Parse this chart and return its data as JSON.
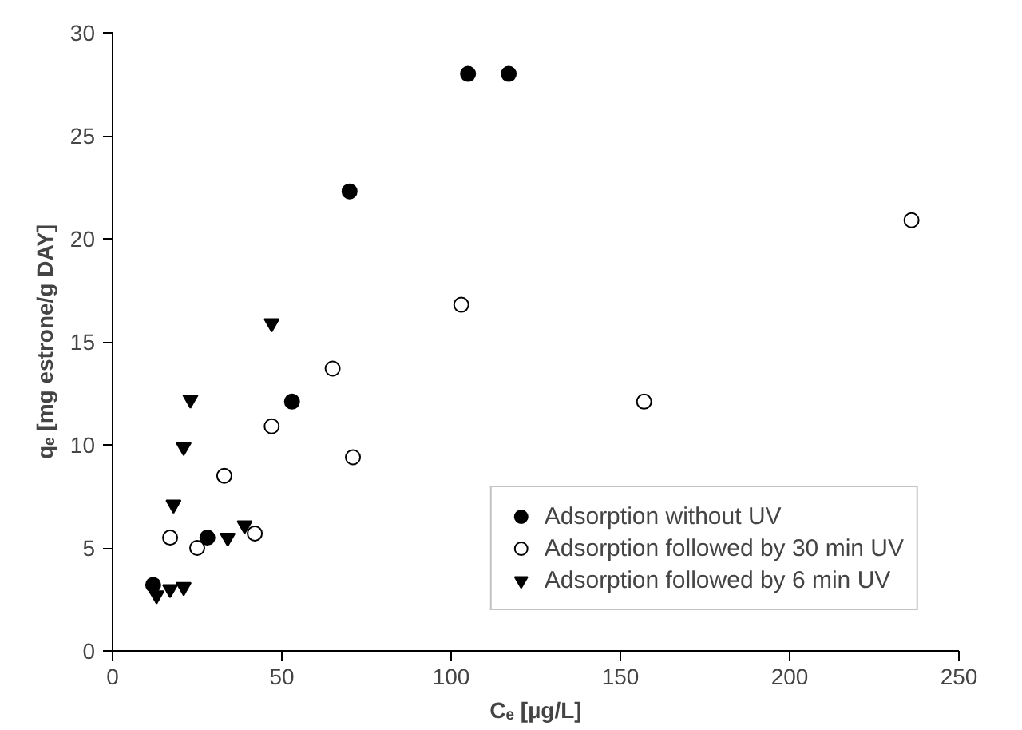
{
  "chart_data": {
    "type": "scatter",
    "xlabel": "Cₑ [µg/L]",
    "ylabel": "qₑ [mg estrone/g DAY]",
    "xlim": [
      0,
      250
    ],
    "xticks": [
      0,
      50,
      100,
      150,
      200,
      250
    ],
    "ylim": [
      0,
      30
    ],
    "yticks": [
      0,
      5,
      10,
      15,
      20,
      25,
      30
    ],
    "grid": false,
    "legend": "bottom right",
    "series": [
      {
        "name": "Adsorption without UV",
        "color": "#000000",
        "marker": "circle",
        "x": [
          12,
          28,
          53,
          70,
          105,
          117
        ],
        "values": [
          3.2,
          5.5,
          12.1,
          22.3,
          28,
          28
        ]
      },
      {
        "name": "Adsorption followed by 30 min UV",
        "color": "#000000",
        "marker": "circle",
        "x": [
          17,
          25,
          33,
          42,
          47,
          65,
          71,
          103,
          157,
          236
        ],
        "values": [
          5.5,
          5,
          8.5,
          5.7,
          10.9,
          13.7,
          9.4,
          16.8,
          12.1,
          20.9
        ]
      },
      {
        "name": "Adsorption followed by 6 min UV",
        "color": "#000000",
        "marker": "triangle",
        "x": [
          13,
          17,
          21,
          18,
          21,
          23,
          34,
          39,
          47
        ],
        "values": [
          2.7,
          3,
          3.1,
          7.1,
          9.9,
          12.2,
          5.5,
          6.1,
          15.9
        ]
      }
    ]
  }
}
